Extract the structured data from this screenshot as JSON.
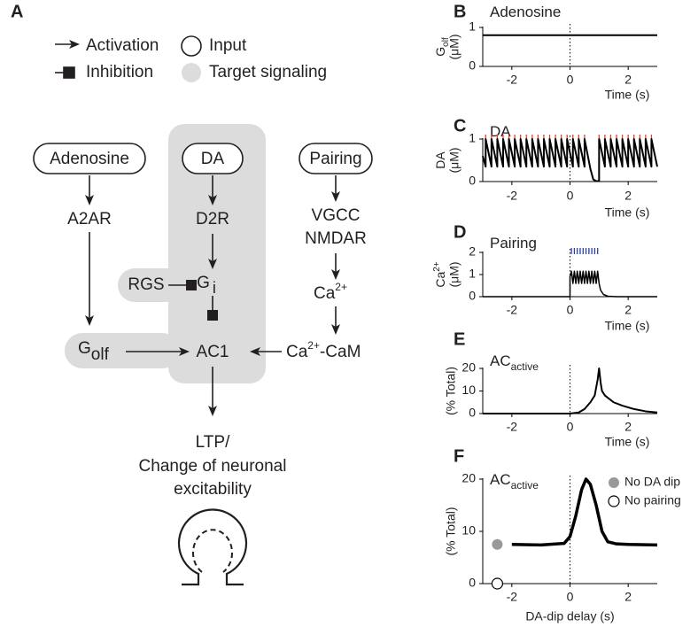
{
  "diagram": {
    "panel": "A",
    "legend": {
      "activation": "Activation",
      "inhibition": "Inhibition",
      "input": "Input",
      "target": "Target signaling"
    },
    "nodes": {
      "adenosine": "Adenosine",
      "da": "DA",
      "pairing": "Pairing",
      "a2ar": "A2AR",
      "d2r": "D2R",
      "vgcc": "VGCC",
      "nmdar": "NMDAR",
      "gi": {
        "main": "G",
        "sub": "i"
      },
      "rgs": "RGS",
      "ca": {
        "main": "Ca",
        "sup": "2+"
      },
      "golf": {
        "main": "G",
        "sub": "olf"
      },
      "ac1": "AC1",
      "cacam": {
        "main": "Ca",
        "sup": "2+",
        "rest": "-CaM"
      }
    },
    "output": [
      "LTP/",
      "Change of neuronal",
      "excitability"
    ]
  },
  "chart_data": [
    {
      "type": "line",
      "panel": "B",
      "title": "Adenosine",
      "ylabel": "G",
      "ylabel_sub": "olf",
      "ylabel_unit": "(μM)",
      "xlabel": "Time (s)",
      "xlim": [
        -3,
        3
      ],
      "xticks": [
        -2,
        0,
        2
      ],
      "ylim": [
        0,
        1
      ],
      "yticks": [
        0,
        1
      ],
      "vline": 0,
      "color": "#000000",
      "line_width": 2,
      "x": [
        -3,
        3
      ],
      "values": [
        0.8,
        0.8
      ]
    },
    {
      "type": "line",
      "panel": "C",
      "title": "DA",
      "ylabel": "DA",
      "ylabel_unit": "(μM)",
      "xlabel": "Time (s)",
      "xlim": [
        -3,
        3
      ],
      "xticks": [
        -2,
        0,
        2
      ],
      "ylim": [
        0,
        1
      ],
      "yticks": [
        0,
        1
      ],
      "vline": 0,
      "color": "#000000",
      "line_width": 2,
      "x": [
        -3,
        -2.9,
        -2.9,
        -2.7,
        -2.7,
        -2.5,
        -2.5,
        -2.3,
        -2.3,
        -2.1,
        -2.1,
        -1.9,
        -1.9,
        -1.7,
        -1.7,
        -1.5,
        -1.5,
        -1.3,
        -1.3,
        -1.1,
        -1.1,
        -0.9,
        -0.9,
        -0.7,
        -0.7,
        -0.5,
        -0.5,
        -0.3,
        -0.3,
        -0.1,
        -0.1,
        0.1,
        0.1,
        0.3,
        0.3,
        0.5,
        0.5,
        0.7,
        0.8,
        0.9,
        1.0,
        1.0,
        1.2,
        1.2,
        1.4,
        1.4,
        1.6,
        1.6,
        1.8,
        1.8,
        2.0,
        2.0,
        2.2,
        2.2,
        2.4,
        2.4,
        2.6,
        2.6,
        2.8,
        2.8,
        3.0
      ],
      "values": [
        0.6,
        0.35,
        1,
        0.35,
        1,
        0.35,
        1,
        0.35,
        1,
        0.35,
        1,
        0.35,
        1,
        0.35,
        1,
        0.35,
        1,
        0.35,
        1,
        0.35,
        1,
        0.35,
        1,
        0.35,
        1,
        0.35,
        1,
        0.35,
        1,
        0.35,
        1,
        0.35,
        1,
        0.35,
        1,
        0.35,
        1,
        0.3,
        0.05,
        0.01,
        0.01,
        1,
        0.35,
        1,
        0.35,
        1,
        0.35,
        1,
        0.35,
        1,
        0.35,
        1,
        0.35,
        1,
        0.35,
        1,
        0.35,
        1,
        0.35,
        1,
        0.35
      ],
      "events": {
        "color": "#e8412c",
        "x": [
          -2.9,
          -2.7,
          -2.5,
          -2.3,
          -2.1,
          -1.9,
          -1.7,
          -1.5,
          -1.3,
          -1.1,
          -0.9,
          -0.7,
          -0.5,
          -0.3,
          -0.1,
          0.1,
          0.3,
          0.5,
          1.0,
          1.2,
          1.4,
          1.6,
          1.8,
          2.0,
          2.2,
          2.4,
          2.6,
          2.8
        ]
      }
    },
    {
      "type": "line",
      "panel": "D",
      "title": "Pairing",
      "ylabel": "Ca",
      "ylabel_sup": "2+",
      "ylabel_unit": "(μM)",
      "xlabel": "Time (s)",
      "xlim": [
        -3,
        3
      ],
      "xticks": [
        -2,
        0,
        2
      ],
      "ylim": [
        0,
        2
      ],
      "yticks": [
        0,
        1,
        2
      ],
      "vline": 0,
      "color": "#000000",
      "line_width": 1.5,
      "x": [
        -3,
        0,
        0,
        0.05,
        0.1,
        0.15,
        0.2,
        0.25,
        0.3,
        0.35,
        0.4,
        0.45,
        0.5,
        0.55,
        0.6,
        0.65,
        0.7,
        0.75,
        0.8,
        0.85,
        0.9,
        0.95,
        1.0,
        1.05,
        1.15,
        1.3,
        1.6,
        3
      ],
      "values": [
        0,
        0,
        0.9,
        1.15,
        0.6,
        1.15,
        0.6,
        1.15,
        0.6,
        1.15,
        0.6,
        1.15,
        0.6,
        1.15,
        0.6,
        1.15,
        0.6,
        1.15,
        0.6,
        1.15,
        0.6,
        1.15,
        0.6,
        0.3,
        0.1,
        0.02,
        0,
        0
      ],
      "events": {
        "color": "#2b3fb0",
        "x": [
          0.05,
          0.15,
          0.25,
          0.35,
          0.45,
          0.55,
          0.65,
          0.75,
          0.85,
          0.95
        ]
      }
    },
    {
      "type": "line",
      "panel": "E",
      "title": "AC",
      "title_sub": "active",
      "ylabel_unit": "(% Total)",
      "xlabel": "Time (s)",
      "xlim": [
        -3,
        3
      ],
      "xticks": [
        -2,
        0,
        2
      ],
      "ylim": [
        0,
        20
      ],
      "yticks": [
        0,
        10,
        20
      ],
      "vline": 0,
      "color": "#000000",
      "line_width": 2,
      "x": [
        -3,
        0,
        0.3,
        0.5,
        0.7,
        0.85,
        0.95,
        1.0,
        1.05,
        1.1,
        1.2,
        1.3,
        1.5,
        1.8,
        2.2,
        2.6,
        3
      ],
      "values": [
        0,
        0,
        0.5,
        2,
        5,
        8,
        15,
        20,
        14,
        10,
        8,
        7,
        5,
        3.5,
        2,
        1,
        0.5
      ]
    },
    {
      "type": "line",
      "panel": "F",
      "title": "AC",
      "title_sub": "active",
      "ylabel_unit": "(% Total)",
      "xlabel": "DA-dip delay (s)",
      "xlim": [
        -3,
        3
      ],
      "xticks": [
        -2,
        0,
        2
      ],
      "ylim": [
        0,
        20
      ],
      "yticks": [
        0,
        10,
        20
      ],
      "vline": 0,
      "color": "#000000",
      "line_width": 3.5,
      "x": [
        -2,
        -1,
        -0.2,
        0,
        0.2,
        0.4,
        0.55,
        0.7,
        0.9,
        1.1,
        1.3,
        1.6,
        2,
        3
      ],
      "values": [
        7.5,
        7.4,
        7.7,
        9,
        13,
        18,
        20,
        19,
        15,
        10,
        8,
        7.6,
        7.5,
        7.4
      ],
      "legend": "upper right",
      "points": [
        {
          "name": "No DA dip",
          "x": -2.5,
          "y": 7.5,
          "marker_fill": "#999999"
        },
        {
          "name": "No pairing",
          "x": -2.5,
          "y": 0,
          "marker_fill": "#ffffff"
        }
      ]
    }
  ]
}
